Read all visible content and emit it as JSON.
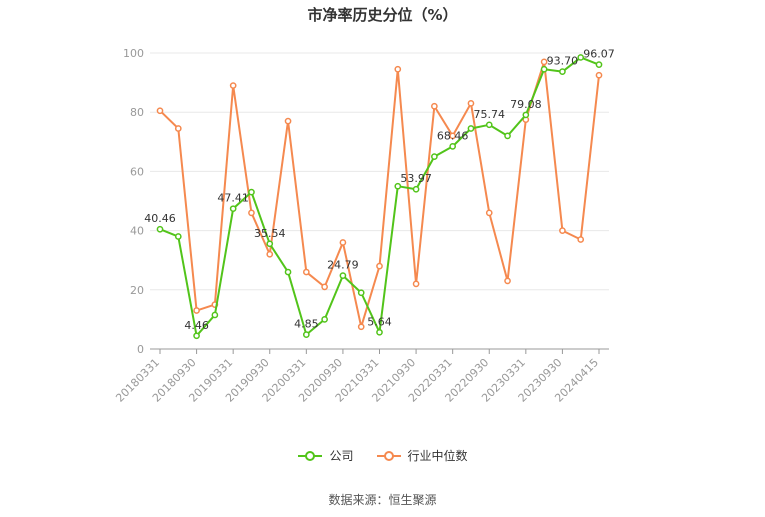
{
  "chart_data": {
    "type": "line",
    "title": "市净率历史分位（%）",
    "x": [
      "20180331",
      "20180630",
      "20180930",
      "20181231",
      "20190331",
      "20190630",
      "20190930",
      "20191231",
      "20200331",
      "20200630",
      "20200930",
      "20201231",
      "20210331",
      "20210630",
      "20210930",
      "20211231",
      "20220331",
      "20220630",
      "20220930",
      "20221231",
      "20230331",
      "20230630",
      "20230930",
      "20231231",
      "20240415"
    ],
    "x_tick_labels": [
      "20180331",
      "20180930",
      "20190331",
      "20190930",
      "20200331",
      "20200930",
      "20210331",
      "20210930",
      "20220331",
      "20220930",
      "20230331",
      "20230930",
      "20240415"
    ],
    "ylim": [
      0,
      100
    ],
    "y_ticks": [
      0,
      20,
      40,
      60,
      80,
      100
    ],
    "grid": true,
    "legend_position": "bottom",
    "series": [
      {
        "name": "公司",
        "color": "#52c41a",
        "values": [
          40.46,
          38,
          4.46,
          11.5,
          47.41,
          53,
          35.54,
          26,
          4.85,
          10,
          24.79,
          19,
          5.64,
          55,
          53.97,
          65,
          68.46,
          74.5,
          75.74,
          72,
          79.08,
          94.5,
          93.7,
          98.5,
          96.07
        ]
      },
      {
        "name": "行业中位数",
        "color": "#f5894f",
        "values": [
          80.5,
          74.5,
          13,
          15,
          89,
          46,
          32,
          77,
          26,
          21,
          36,
          7.5,
          28,
          94.5,
          22,
          82,
          72,
          83,
          46,
          23,
          77.5,
          97,
          40,
          37,
          92.5
        ]
      }
    ],
    "data_labels": [
      {
        "index": 0,
        "text": "40.46"
      },
      {
        "index": 2,
        "text": "4.46"
      },
      {
        "index": 4,
        "text": "47.41"
      },
      {
        "index": 6,
        "text": "35.54"
      },
      {
        "index": 8,
        "text": "4.85"
      },
      {
        "index": 10,
        "text": "24.79"
      },
      {
        "index": 12,
        "text": "5.64"
      },
      {
        "index": 14,
        "text": "53.97"
      },
      {
        "index": 16,
        "text": "68.46"
      },
      {
        "index": 18,
        "text": "75.74"
      },
      {
        "index": 20,
        "text": "79.08"
      },
      {
        "index": 22,
        "text": "93.70"
      },
      {
        "index": 24,
        "text": "96.07"
      }
    ]
  },
  "legend": {
    "company_label": "公司",
    "industry_label": "行业中位数"
  },
  "source_text": "数据来源：恒生聚源"
}
